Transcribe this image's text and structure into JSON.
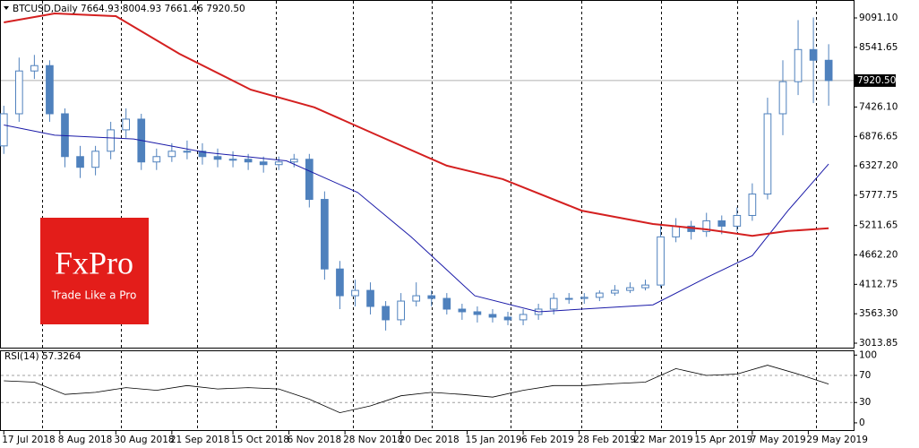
{
  "chart_data": {
    "type": "candlestick",
    "title": "BTCUSD,Daily  7664.93 8004.93 7661.46 7920.50",
    "color": "#4f81bd",
    "x": [
      0,
      6,
      12,
      18,
      24,
      30,
      36,
      42,
      48,
      54,
      60,
      66,
      72,
      78,
      84,
      90,
      96,
      102,
      108,
      114,
      120,
      126,
      132,
      138,
      144,
      150,
      156,
      162,
      168,
      174,
      180,
      186,
      192,
      198,
      204,
      210,
      216,
      222,
      228,
      234,
      240,
      246,
      252,
      258,
      264,
      270,
      276,
      282,
      288,
      294,
      300,
      306,
      312,
      318,
      324
    ],
    "open": [
      6700,
      7300,
      8100,
      8200,
      7300,
      6500,
      6300,
      6600,
      7000,
      7200,
      6400,
      6500,
      6600,
      6600,
      6500,
      6450,
      6450,
      6400,
      6350,
      6400,
      6450,
      5700,
      4400,
      3900,
      4000,
      3700,
      3450,
      3800,
      3900,
      3850,
      3650,
      3600,
      3550,
      3500,
      3450,
      3550,
      3650,
      3850,
      3850,
      3870,
      3950,
      4000,
      4050,
      4100,
      5000,
      5200,
      5100,
      5300,
      5200,
      5400,
      5800,
      7300,
      7900,
      8500,
      8300
    ],
    "high": [
      7450,
      8350,
      8400,
      8300,
      7400,
      6700,
      6700,
      7150,
      7400,
      7300,
      6650,
      6750,
      6800,
      6750,
      6650,
      6600,
      6550,
      6500,
      6500,
      6550,
      6550,
      5850,
      4550,
      4200,
      4150,
      3800,
      3950,
      4150,
      4000,
      3950,
      3750,
      3700,
      3650,
      3600,
      3650,
      3750,
      3950,
      3950,
      3950,
      4000,
      4100,
      4150,
      4200,
      5250,
      5350,
      5300,
      5450,
      5400,
      5550,
      6000,
      7600,
      8300,
      9050,
      9100,
      8600
    ],
    "low": [
      6550,
      7150,
      7950,
      7150,
      6300,
      6100,
      6150,
      6450,
      6850,
      6250,
      6250,
      6400,
      6450,
      6350,
      6300,
      6300,
      6250,
      6200,
      6250,
      6300,
      5550,
      4200,
      3650,
      3700,
      3550,
      3250,
      3350,
      3700,
      3700,
      3550,
      3450,
      3400,
      3400,
      3350,
      3350,
      3450,
      3550,
      3750,
      3750,
      3800,
      3900,
      3950,
      4000,
      4050,
      4900,
      4950,
      5000,
      5050,
      5100,
      5300,
      5700,
      6900,
      7650,
      7500,
      7450
    ],
    "close": [
      7300,
      8100,
      8200,
      7300,
      6500,
      6300,
      6600,
      7000,
      7200,
      6400,
      6500,
      6600,
      6600,
      6500,
      6450,
      6450,
      6400,
      6350,
      6400,
      6450,
      5700,
      4400,
      3900,
      4000,
      3700,
      3450,
      3800,
      3900,
      3850,
      3650,
      3600,
      3550,
      3500,
      3450,
      3550,
      3650,
      3850,
      3850,
      3870,
      3950,
      4000,
      4050,
      4100,
      5000,
      5200,
      5100,
      5300,
      5200,
      5400,
      5800,
      7300,
      7900,
      8500,
      8300,
      7920.5
    ],
    "series": [
      {
        "color": "#1a1aa8",
        "x": [
          0,
          20,
          51,
          79,
          111,
          139,
          160,
          185,
          210,
          255,
          276,
          294,
          308,
          324
        ],
        "values": [
          7090,
          6900,
          6830,
          6580,
          6420,
          5830,
          5000,
          3900,
          3600,
          3730,
          4240,
          4650,
          5490,
          6360
        ]
      },
      {
        "color": "#d42020",
        "x": [
          0,
          20,
          44,
          69,
          97,
          122,
          146,
          174,
          196,
          227,
          255,
          276,
          294,
          308,
          324
        ],
        "values": [
          9008,
          9175,
          9125,
          8420,
          7750,
          7420,
          6915,
          6330,
          6080,
          5490,
          5240,
          5140,
          5020,
          5110,
          5160
        ]
      }
    ],
    "xlim": [
      -1.5,
      333.8
    ],
    "xticks": [
      {
        "value": 0,
        "label": "17 Jul 2018"
      },
      {
        "value": 22,
        "label": "8 Aug 2018"
      },
      {
        "value": 44,
        "label": "30 Aug 2018"
      },
      {
        "value": 66,
        "label": "21 Sep 2018"
      },
      {
        "value": 90,
        "label": "15 Oct 2018"
      },
      {
        "value": 112,
        "label": "6 Nov 2018"
      },
      {
        "value": 134,
        "label": "28 Nov 2018"
      },
      {
        "value": 156,
        "label": "20 Dec 2018"
      },
      {
        "value": 182,
        "label": "15 Jan 2019"
      },
      {
        "value": 204,
        "label": "6 Feb 2019"
      },
      {
        "value": 226,
        "label": "28 Feb 2019"
      },
      {
        "value": 248,
        "label": "22 Mar 2019"
      },
      {
        "value": 272,
        "label": "15 Apr 2019"
      },
      {
        "value": 294,
        "label": "7 May 2019"
      },
      {
        "value": 316,
        "label": "29 May 2019"
      }
    ],
    "separators": [
      15,
      46,
      76,
      107,
      137,
      168,
      199,
      227,
      258,
      288,
      319
    ],
    "ylim": [
      2930,
      9426
    ],
    "yticks": [
      {
        "value": 9091.1,
        "label": "9091.10"
      },
      {
        "value": 8541.65,
        "label": "8541.65"
      },
      {
        "value": 7426.1,
        "label": "7426.10"
      },
      {
        "value": 6876.65,
        "label": "6876.65"
      },
      {
        "value": 6327.2,
        "label": "6327.20"
      },
      {
        "value": 5777.75,
        "label": "5777.75"
      },
      {
        "value": 5211.65,
        "label": "5211.65"
      },
      {
        "value": 4662.2,
        "label": "4662.20"
      },
      {
        "value": 4112.75,
        "label": "4112.75"
      },
      {
        "value": 3563.3,
        "label": "3563.30"
      },
      {
        "value": 3013.85,
        "label": "3013.85"
      }
    ],
    "current_price": {
      "value": 7920.5,
      "label": "7920.50"
    },
    "rsi": {
      "label": "RSI(14) 57.3264",
      "color": "#000000",
      "x": [
        0,
        12,
        24,
        36,
        48,
        60,
        72,
        84,
        96,
        108,
        120,
        132,
        144,
        156,
        168,
        180,
        192,
        204,
        216,
        228,
        240,
        252,
        264,
        276,
        288,
        300,
        312,
        324
      ],
      "values": [
        62,
        60,
        42,
        45,
        52,
        48,
        55,
        50,
        52,
        50,
        35,
        15,
        25,
        40,
        45,
        42,
        38,
        48,
        55,
        55,
        58,
        60,
        80,
        70,
        72,
        85,
        72,
        57.3264
      ],
      "ylim": [
        -12,
        107
      ],
      "yticks": [
        100,
        70,
        30,
        0
      ],
      "levels": [
        30,
        70
      ]
    }
  },
  "logo": {
    "brand": "FxPro",
    "tagline": "Trade Like a Pro"
  }
}
